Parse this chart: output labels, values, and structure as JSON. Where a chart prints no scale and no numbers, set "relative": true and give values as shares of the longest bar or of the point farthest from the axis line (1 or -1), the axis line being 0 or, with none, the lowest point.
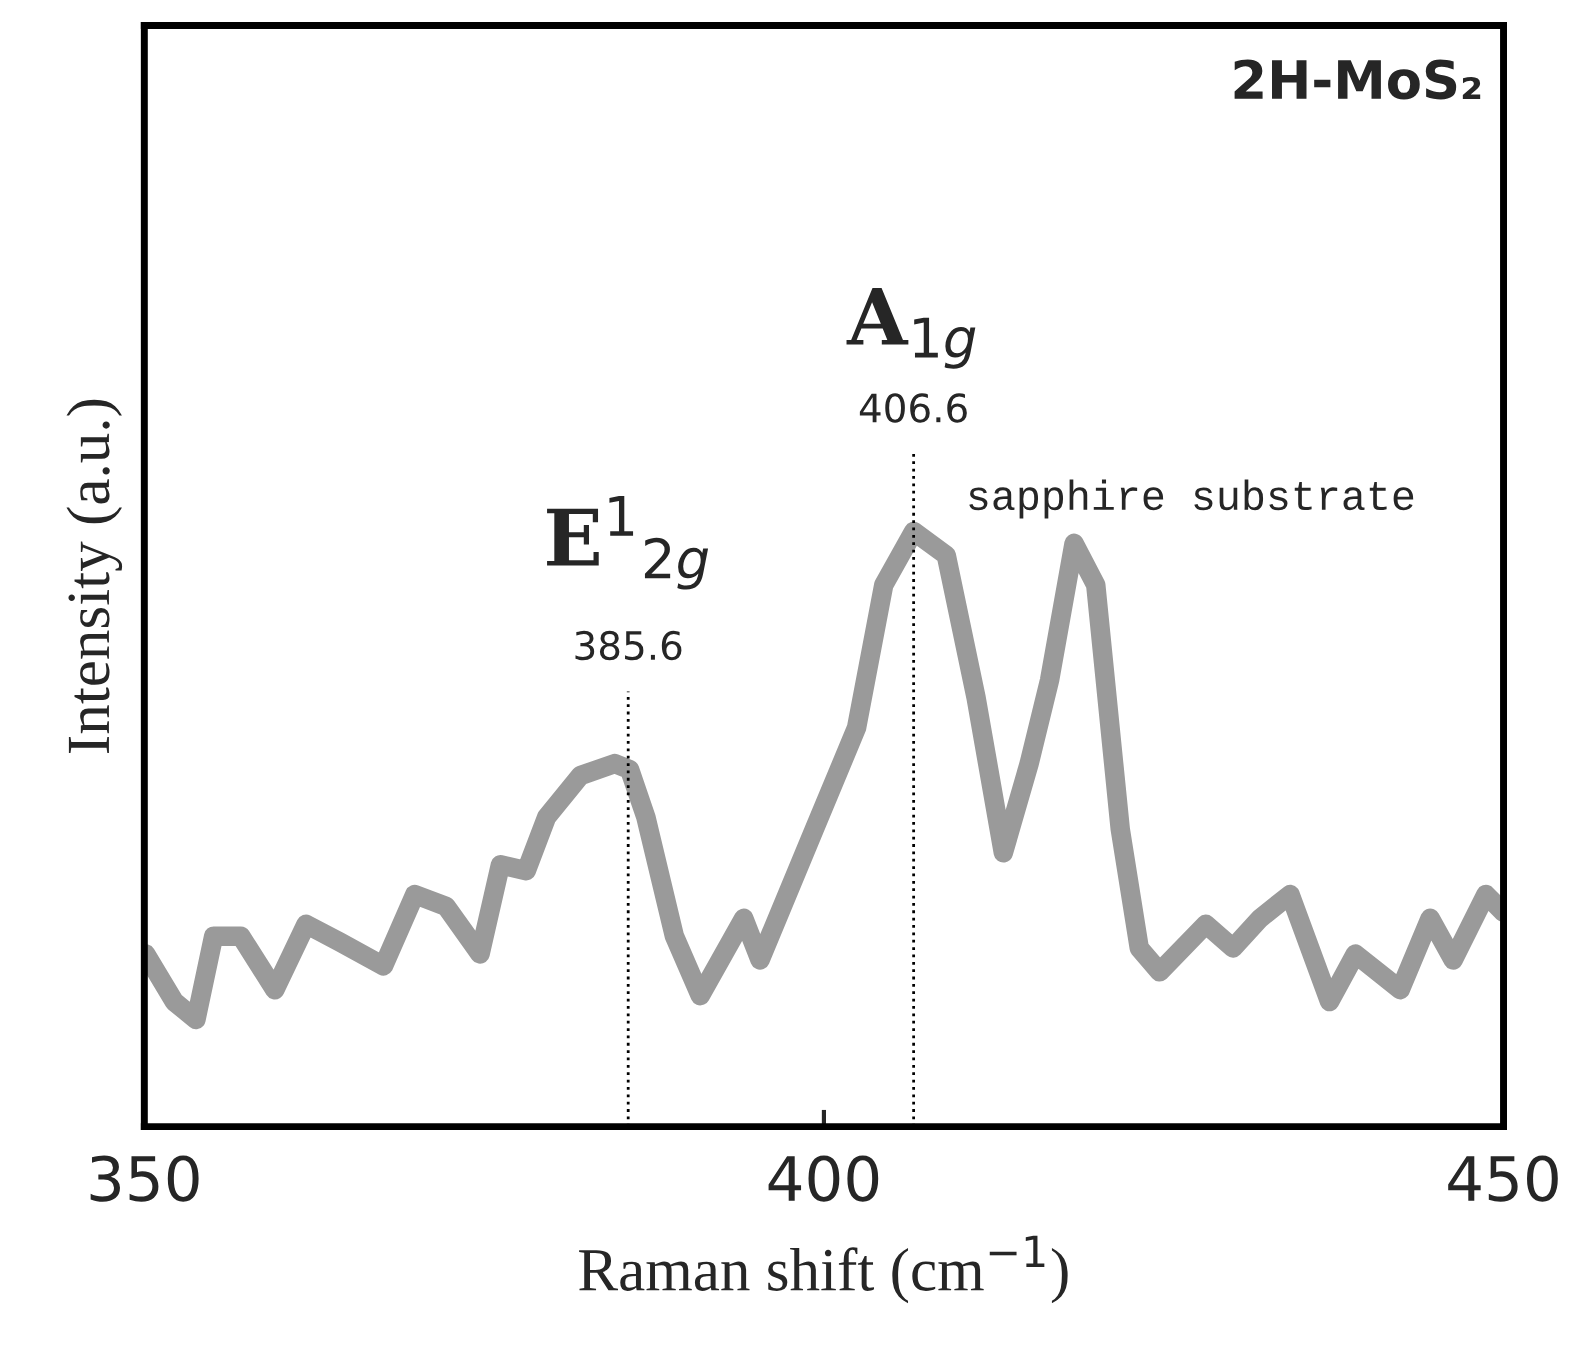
{
  "chart_data": {
    "type": "line",
    "title": "2H-MoS₂",
    "xlabel": "Raman shift (cm$^{−1}$)",
    "ylabel": "Intensity (a.u.)",
    "relative": true,
    "xlim": [
      350,
      450
    ],
    "xticks": [
      350,
      400,
      450
    ],
    "tick_labels": "x",
    "grid": false,
    "legend": false,
    "series": [
      {
        "color": "#9a9a9a",
        "x": [
          350.1,
          352.2,
          353.8,
          355.1,
          357.1,
          359.6,
          361.9,
          364.4,
          367.6,
          369.9,
          372.2,
          374.7,
          376.2,
          378.1,
          379.6,
          382.1,
          384.6,
          385.7,
          386.9,
          389.0,
          390.9,
          394.1,
          395.3,
          399.3,
          402.4,
          404.4,
          406.6,
          409.0,
          411.2,
          413.2,
          415.1,
          416.6,
          418.4,
          420.0,
          421.8,
          423.2,
          424.7,
          428.1,
          430.1,
          432.1,
          434.3,
          437.2,
          439.1,
          442.4,
          444.6,
          446.3,
          448.7,
          450.0
        ],
        "values": [
          0.29,
          0.21,
          0.18,
          0.32,
          0.32,
          0.23,
          0.34,
          0.31,
          0.27,
          0.39,
          0.37,
          0.29,
          0.44,
          0.43,
          0.52,
          0.59,
          0.61,
          0.6,
          0.52,
          0.32,
          0.22,
          0.35,
          0.28,
          0.5,
          0.67,
          0.91,
          1.0,
          0.96,
          0.72,
          0.46,
          0.61,
          0.75,
          0.98,
          0.91,
          0.5,
          0.3,
          0.26,
          0.34,
          0.3,
          0.35,
          0.39,
          0.21,
          0.29,
          0.23,
          0.35,
          0.28,
          0.39,
          0.36
        ]
      }
    ],
    "ref_lines": [
      {
        "axis": "x",
        "value": 385.6,
        "label": "385.6",
        "line_style": "dotted"
      },
      {
        "axis": "x",
        "value": 406.6,
        "label": "406.6",
        "line_style": "dotted"
      }
    ],
    "annotations": [
      "E$^{1}$$_{2g}$",
      "A$_{1g}$",
      "sapphire substrate"
    ]
  }
}
